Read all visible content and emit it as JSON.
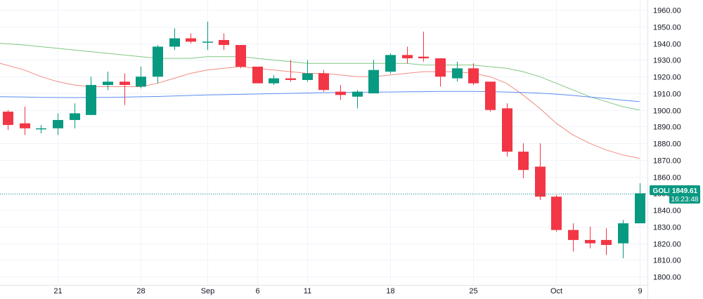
{
  "chart_data": {
    "type": "candlestick",
    "symbol": "GOLD",
    "price_label": "1849.61",
    "countdown": "16:23:48",
    "current_price": 1849.61,
    "ylim": [
      1795,
      1966
    ],
    "y_ticks": [
      1800,
      1810,
      1820,
      1830,
      1840,
      1850,
      1860,
      1870,
      1880,
      1890,
      1900,
      1910,
      1920,
      1930,
      1940,
      1950,
      1960
    ],
    "y_tick_labels": [
      "1800.00",
      "1810.00",
      "1820.00",
      "1830.00",
      "1840.00",
      "1850.00",
      "1860.00",
      "1870.00",
      "1880.00",
      "1890.00",
      "1900.00",
      "1910.00",
      "1920.00",
      "1930.00",
      "1940.00",
      "1950.00",
      "1960.00"
    ],
    "x_ticks": [
      {
        "label": "21",
        "index": 3
      },
      {
        "label": "28",
        "index": 8
      },
      {
        "label": "Sep",
        "index": 12
      },
      {
        "label": "6",
        "index": 15
      },
      {
        "label": "11",
        "index": 18
      },
      {
        "label": "18",
        "index": 23
      },
      {
        "label": "25",
        "index": 28
      },
      {
        "label": "Oct",
        "index": 33
      },
      {
        "label": "9",
        "index": 38
      }
    ],
    "candles": [
      {
        "o": 1899,
        "h": 1900,
        "l": 1888,
        "c": 1891
      },
      {
        "o": 1892,
        "h": 1902,
        "l": 1885,
        "c": 1889
      },
      {
        "o": 1889,
        "h": 1891,
        "l": 1886,
        "c": 1889
      },
      {
        "o": 1889,
        "h": 1898,
        "l": 1885,
        "c": 1894
      },
      {
        "o": 1894,
        "h": 1904,
        "l": 1889,
        "c": 1898
      },
      {
        "o": 1897,
        "h": 1920,
        "l": 1897,
        "c": 1915
      },
      {
        "o": 1915,
        "h": 1923,
        "l": 1912,
        "c": 1917
      },
      {
        "o": 1917,
        "h": 1922,
        "l": 1903,
        "c": 1915
      },
      {
        "o": 1914,
        "h": 1926,
        "l": 1913,
        "c": 1920
      },
      {
        "o": 1920,
        "h": 1939,
        "l": 1916,
        "c": 1938
      },
      {
        "o": 1938,
        "h": 1949,
        "l": 1936,
        "c": 1943
      },
      {
        "o": 1943,
        "h": 1946,
        "l": 1940,
        "c": 1941
      },
      {
        "o": 1941,
        "h": 1953,
        "l": 1936,
        "c": 1941
      },
      {
        "o": 1942,
        "h": 1946,
        "l": 1936,
        "c": 1939
      },
      {
        "o": 1939,
        "h": 1939,
        "l": 1925,
        "c": 1926
      },
      {
        "o": 1926,
        "h": 1926,
        "l": 1916,
        "c": 1916
      },
      {
        "o": 1916,
        "h": 1921,
        "l": 1915,
        "c": 1919
      },
      {
        "o": 1919,
        "h": 1930,
        "l": 1917,
        "c": 1918
      },
      {
        "o": 1918,
        "h": 1930,
        "l": 1917,
        "c": 1922
      },
      {
        "o": 1922,
        "h": 1924,
        "l": 1911,
        "c": 1912
      },
      {
        "o": 1911,
        "h": 1915,
        "l": 1906,
        "c": 1909
      },
      {
        "o": 1908,
        "h": 1912,
        "l": 1901,
        "c": 1911
      },
      {
        "o": 1910,
        "h": 1930,
        "l": 1910,
        "c": 1924
      },
      {
        "o": 1923,
        "h": 1934,
        "l": 1922,
        "c": 1933
      },
      {
        "o": 1933,
        "h": 1938,
        "l": 1928,
        "c": 1931
      },
      {
        "o": 1932,
        "h": 1947,
        "l": 1929,
        "c": 1931
      },
      {
        "o": 1931,
        "h": 1931,
        "l": 1914,
        "c": 1920
      },
      {
        "o": 1919,
        "h": 1929,
        "l": 1917,
        "c": 1925
      },
      {
        "o": 1925,
        "h": 1928,
        "l": 1915,
        "c": 1916
      },
      {
        "o": 1917,
        "h": 1917,
        "l": 1899,
        "c": 1900
      },
      {
        "o": 1901,
        "h": 1904,
        "l": 1872,
        "c": 1875
      },
      {
        "o": 1875,
        "h": 1880,
        "l": 1859,
        "c": 1864
      },
      {
        "o": 1866,
        "h": 1880,
        "l": 1846,
        "c": 1848
      },
      {
        "o": 1848,
        "h": 1849,
        "l": 1827,
        "c": 1828
      },
      {
        "o": 1828,
        "h": 1832,
        "l": 1815,
        "c": 1822
      },
      {
        "o": 1822,
        "h": 1830,
        "l": 1817,
        "c": 1820
      },
      {
        "o": 1822,
        "h": 1829,
        "l": 1813,
        "c": 1819
      },
      {
        "o": 1820,
        "h": 1834,
        "l": 1811,
        "c": 1832
      },
      {
        "o": 1832,
        "h": 1856,
        "l": 1832,
        "c": 1850
      }
    ],
    "moving_averages": [
      {
        "color": "#81c784",
        "values": [
          1940,
          1939,
          1938,
          1937,
          1936,
          1935,
          1934,
          1933,
          1932,
          1931,
          1931,
          1931,
          1932,
          1932,
          1932,
          1931,
          1930,
          1929,
          1928,
          1928,
          1928,
          1928,
          1928,
          1928,
          1928,
          1927,
          1927,
          1927,
          1927,
          1926,
          1925,
          1923,
          1920,
          1916,
          1912,
          1908,
          1905,
          1902,
          1900
        ]
      },
      {
        "color": "#f28b82",
        "values": [
          1928,
          1924,
          1920,
          1917,
          1915,
          1914,
          1914,
          1914,
          1914,
          1916,
          1919,
          1922,
          1924,
          1925,
          1926,
          1925,
          1924,
          1923,
          1922,
          1922,
          1921,
          1920,
          1920,
          1921,
          1922,
          1923,
          1923,
          1923,
          1922,
          1920,
          1916,
          1909,
          1901,
          1892,
          1885,
          1880,
          1876,
          1873,
          1871
        ]
      },
      {
        "color": "#5b8def",
        "values": [
          1908,
          1907.8,
          1907.6,
          1907.5,
          1907.4,
          1907.5,
          1907.6,
          1907.7,
          1907.9,
          1908.1,
          1908.4,
          1908.7,
          1909,
          1909.2,
          1909.4,
          1909.6,
          1909.8,
          1910,
          1910.2,
          1910.4,
          1910.5,
          1910.6,
          1910.7,
          1910.8,
          1910.9,
          1911,
          1911.1,
          1911.1,
          1911.1,
          1911,
          1910.8,
          1910.5,
          1910.1,
          1909.5,
          1908.7,
          1907.8,
          1906.9,
          1905.9,
          1905
        ]
      }
    ],
    "colors": {
      "up": "#089981",
      "down": "#f23645",
      "grid": "#f0f3fa",
      "axis_text": "#131722",
      "price_line": "#089981",
      "border": "#e0e3eb"
    }
  }
}
